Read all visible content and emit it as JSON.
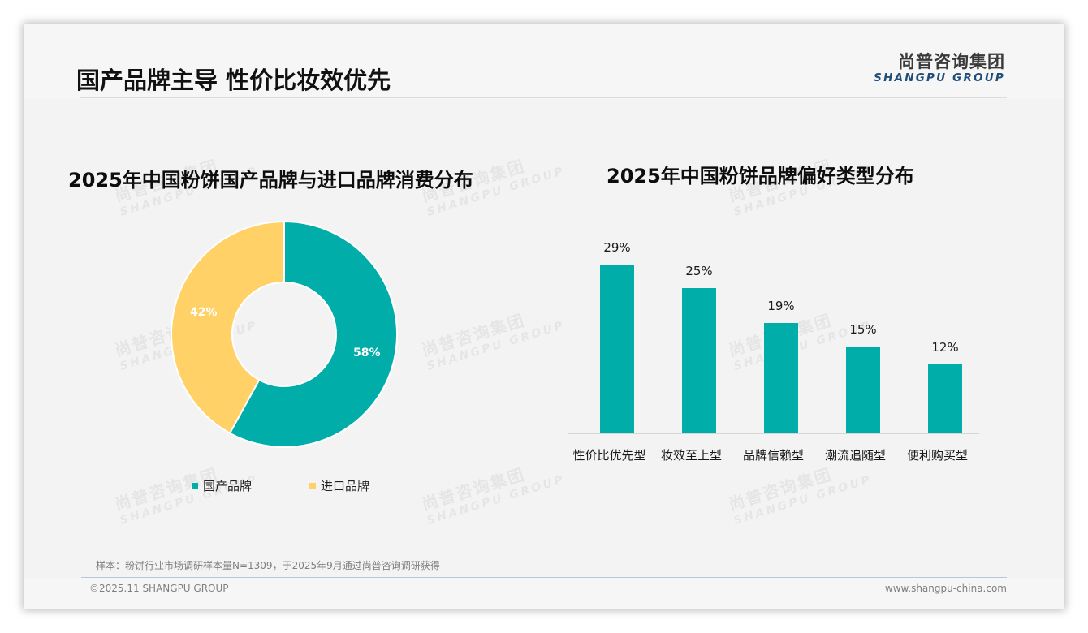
{
  "header": {
    "title": "国产品牌主导 性价比妆效优先",
    "logo_cn": "尚普咨询集团",
    "logo_en": "SHANGPU GROUP"
  },
  "watermark": {
    "cn": "尚普咨询集团",
    "en": "SHANGPU GROUP"
  },
  "colors": {
    "teal": "#00ADA8",
    "yellow": "#FFD166",
    "logo_blue": "#1F4E79"
  },
  "chart_data": [
    {
      "type": "pie",
      "variant": "donut",
      "title": "2025年中国粉饼国产品牌与进口品牌消费分布",
      "categories": [
        "国产品牌",
        "进口品牌"
      ],
      "values": [
        58,
        42
      ],
      "labels": [
        "58%",
        "42%"
      ],
      "colors": [
        "#00ADA8",
        "#FFD166"
      ],
      "legend_position": "bottom"
    },
    {
      "type": "bar",
      "title": "2025年中国粉饼品牌偏好类型分布",
      "categories": [
        "性价比优先型",
        "妆效至上型",
        "品牌信赖型",
        "潮流追随型",
        "便利购买型"
      ],
      "values": [
        29,
        25,
        19,
        15,
        12
      ],
      "labels": [
        "29%",
        "25%",
        "19%",
        "15%",
        "12%"
      ],
      "xlabel": "",
      "ylabel": "",
      "unit": "%",
      "grid": false,
      "color": "#00ADA8"
    }
  ],
  "footer": {
    "note": "样本：粉饼行业市场调研样本量N=1309，于2025年9月通过尚普咨询调研获得",
    "copyright": "©2025.11 SHANGPU GROUP",
    "website": "www.shangpu-china.com"
  }
}
